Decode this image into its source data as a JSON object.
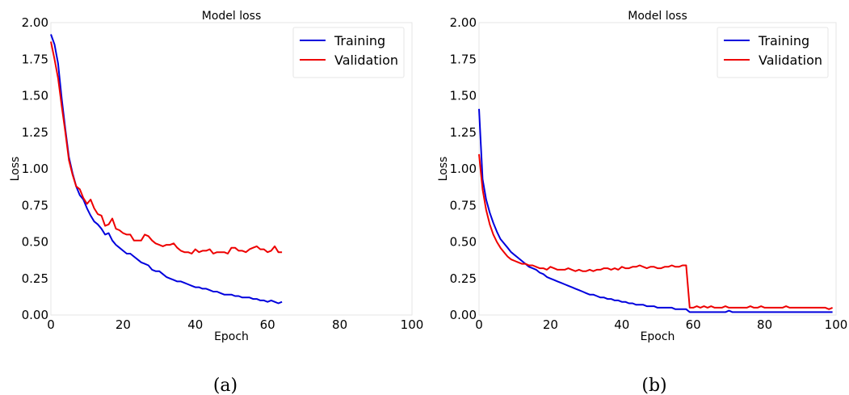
{
  "chart_data": [
    {
      "type": "line",
      "title": "Model loss",
      "xlabel": "Epoch",
      "ylabel": "Loss",
      "caption": "(a)",
      "xlim": [
        0,
        100
      ],
      "ylim": [
        0,
        2.0
      ],
      "x_ticks": [
        "0",
        "20",
        "40",
        "60",
        "80",
        "100"
      ],
      "y_ticks": [
        "0.00",
        "0.25",
        "0.50",
        "0.75",
        "1.00",
        "1.25",
        "1.50",
        "1.75",
        "2.00"
      ],
      "legend_position": "top-right",
      "grid": false,
      "series": [
        {
          "name": "Training",
          "color": "#0000dd",
          "values": [
            1.92,
            1.85,
            1.72,
            1.48,
            1.27,
            1.08,
            0.97,
            0.88,
            0.82,
            0.79,
            0.73,
            0.68,
            0.64,
            0.62,
            0.59,
            0.55,
            0.56,
            0.51,
            0.48,
            0.46,
            0.44,
            0.42,
            0.42,
            0.4,
            0.38,
            0.36,
            0.35,
            0.34,
            0.31,
            0.3,
            0.3,
            0.28,
            0.26,
            0.25,
            0.24,
            0.23,
            0.23,
            0.22,
            0.21,
            0.2,
            0.19,
            0.19,
            0.18,
            0.18,
            0.17,
            0.16,
            0.16,
            0.15,
            0.14,
            0.14,
            0.14,
            0.13,
            0.13,
            0.12,
            0.12,
            0.12,
            0.11,
            0.11,
            0.1,
            0.1,
            0.09,
            0.1,
            0.09,
            0.08,
            0.09
          ]
        },
        {
          "name": "Validation",
          "color": "#ee0000",
          "values": [
            1.87,
            1.75,
            1.62,
            1.43,
            1.25,
            1.06,
            0.96,
            0.88,
            0.86,
            0.8,
            0.76,
            0.79,
            0.73,
            0.69,
            0.68,
            0.61,
            0.62,
            0.66,
            0.59,
            0.58,
            0.56,
            0.55,
            0.55,
            0.51,
            0.51,
            0.51,
            0.55,
            0.54,
            0.51,
            0.49,
            0.48,
            0.47,
            0.48,
            0.48,
            0.49,
            0.46,
            0.44,
            0.43,
            0.43,
            0.42,
            0.45,
            0.43,
            0.44,
            0.44,
            0.45,
            0.42,
            0.43,
            0.43,
            0.43,
            0.42,
            0.46,
            0.46,
            0.44,
            0.44,
            0.43,
            0.45,
            0.46,
            0.47,
            0.45,
            0.45,
            0.43,
            0.44,
            0.47,
            0.43,
            0.43
          ]
        }
      ]
    },
    {
      "type": "line",
      "title": "Model loss",
      "xlabel": "Epoch",
      "ylabel": "Loss",
      "caption": "(b)",
      "xlim": [
        0,
        100
      ],
      "ylim": [
        0,
        2.0
      ],
      "x_ticks": [
        "0",
        "20",
        "40",
        "60",
        "80",
        "100"
      ],
      "y_ticks": [
        "0.00",
        "0.25",
        "0.50",
        "0.75",
        "1.00",
        "1.25",
        "1.50",
        "1.75",
        "2.00"
      ],
      "legend_position": "top-right",
      "grid": false,
      "series": [
        {
          "name": "Training",
          "color": "#0000dd",
          "values": [
            1.41,
            0.93,
            0.79,
            0.7,
            0.63,
            0.57,
            0.52,
            0.49,
            0.46,
            0.43,
            0.41,
            0.39,
            0.37,
            0.35,
            0.33,
            0.32,
            0.31,
            0.29,
            0.28,
            0.26,
            0.25,
            0.24,
            0.23,
            0.22,
            0.21,
            0.2,
            0.19,
            0.18,
            0.17,
            0.16,
            0.15,
            0.14,
            0.14,
            0.13,
            0.12,
            0.12,
            0.11,
            0.11,
            0.1,
            0.1,
            0.09,
            0.09,
            0.08,
            0.08,
            0.07,
            0.07,
            0.07,
            0.06,
            0.06,
            0.06,
            0.05,
            0.05,
            0.05,
            0.05,
            0.05,
            0.04,
            0.04,
            0.04,
            0.04,
            0.02,
            0.02,
            0.02,
            0.02,
            0.02,
            0.02,
            0.02,
            0.02,
            0.02,
            0.02,
            0.02,
            0.03,
            0.02,
            0.02,
            0.02,
            0.02,
            0.02,
            0.02,
            0.02,
            0.02,
            0.02,
            0.02,
            0.02,
            0.02,
            0.02,
            0.02,
            0.02,
            0.02,
            0.02,
            0.02,
            0.02,
            0.02,
            0.02,
            0.02,
            0.02,
            0.02,
            0.02,
            0.02,
            0.02,
            0.02,
            0.02
          ]
        },
        {
          "name": "Validation",
          "color": "#ee0000",
          "values": [
            1.1,
            0.86,
            0.72,
            0.62,
            0.55,
            0.5,
            0.46,
            0.43,
            0.4,
            0.38,
            0.37,
            0.36,
            0.35,
            0.35,
            0.34,
            0.34,
            0.33,
            0.32,
            0.32,
            0.31,
            0.33,
            0.32,
            0.31,
            0.31,
            0.31,
            0.32,
            0.31,
            0.3,
            0.31,
            0.3,
            0.3,
            0.31,
            0.3,
            0.31,
            0.31,
            0.32,
            0.32,
            0.31,
            0.32,
            0.31,
            0.33,
            0.32,
            0.32,
            0.33,
            0.33,
            0.34,
            0.33,
            0.32,
            0.33,
            0.33,
            0.32,
            0.32,
            0.33,
            0.33,
            0.34,
            0.33,
            0.33,
            0.34,
            0.34,
            0.05,
            0.05,
            0.06,
            0.05,
            0.06,
            0.05,
            0.06,
            0.05,
            0.05,
            0.05,
            0.06,
            0.05,
            0.05,
            0.05,
            0.05,
            0.05,
            0.05,
            0.06,
            0.05,
            0.05,
            0.06,
            0.05,
            0.05,
            0.05,
            0.05,
            0.05,
            0.05,
            0.06,
            0.05,
            0.05,
            0.05,
            0.05,
            0.05,
            0.05,
            0.05,
            0.05,
            0.05,
            0.05,
            0.05,
            0.04,
            0.05
          ]
        }
      ]
    }
  ]
}
